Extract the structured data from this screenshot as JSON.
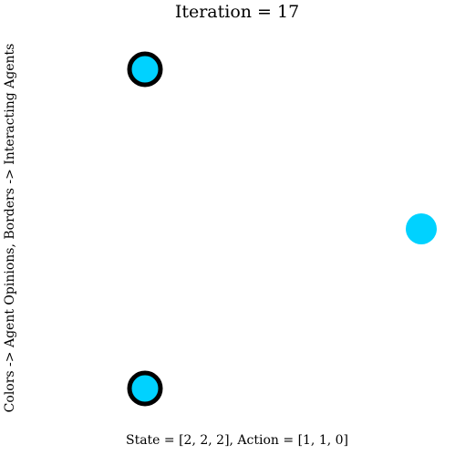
{
  "figure": {
    "title": "Iteration = 17",
    "side_label": "Colors -> Agent Opinions, Borders -> Interacting Agents",
    "bottom_label": "State = [2, 2, 2], Action = [1, 1, 0]"
  },
  "agents": [
    {
      "id": "agent-1",
      "opinion_color": "#00d2ff",
      "interacting": true
    },
    {
      "id": "agent-2",
      "opinion_color": "#00d2ff",
      "interacting": false
    },
    {
      "id": "agent-3",
      "opinion_color": "#00d2ff",
      "interacting": true
    }
  ],
  "colors": {
    "background": "#ffffff",
    "border": "#000000",
    "agent_fill": "#00d2ff"
  }
}
